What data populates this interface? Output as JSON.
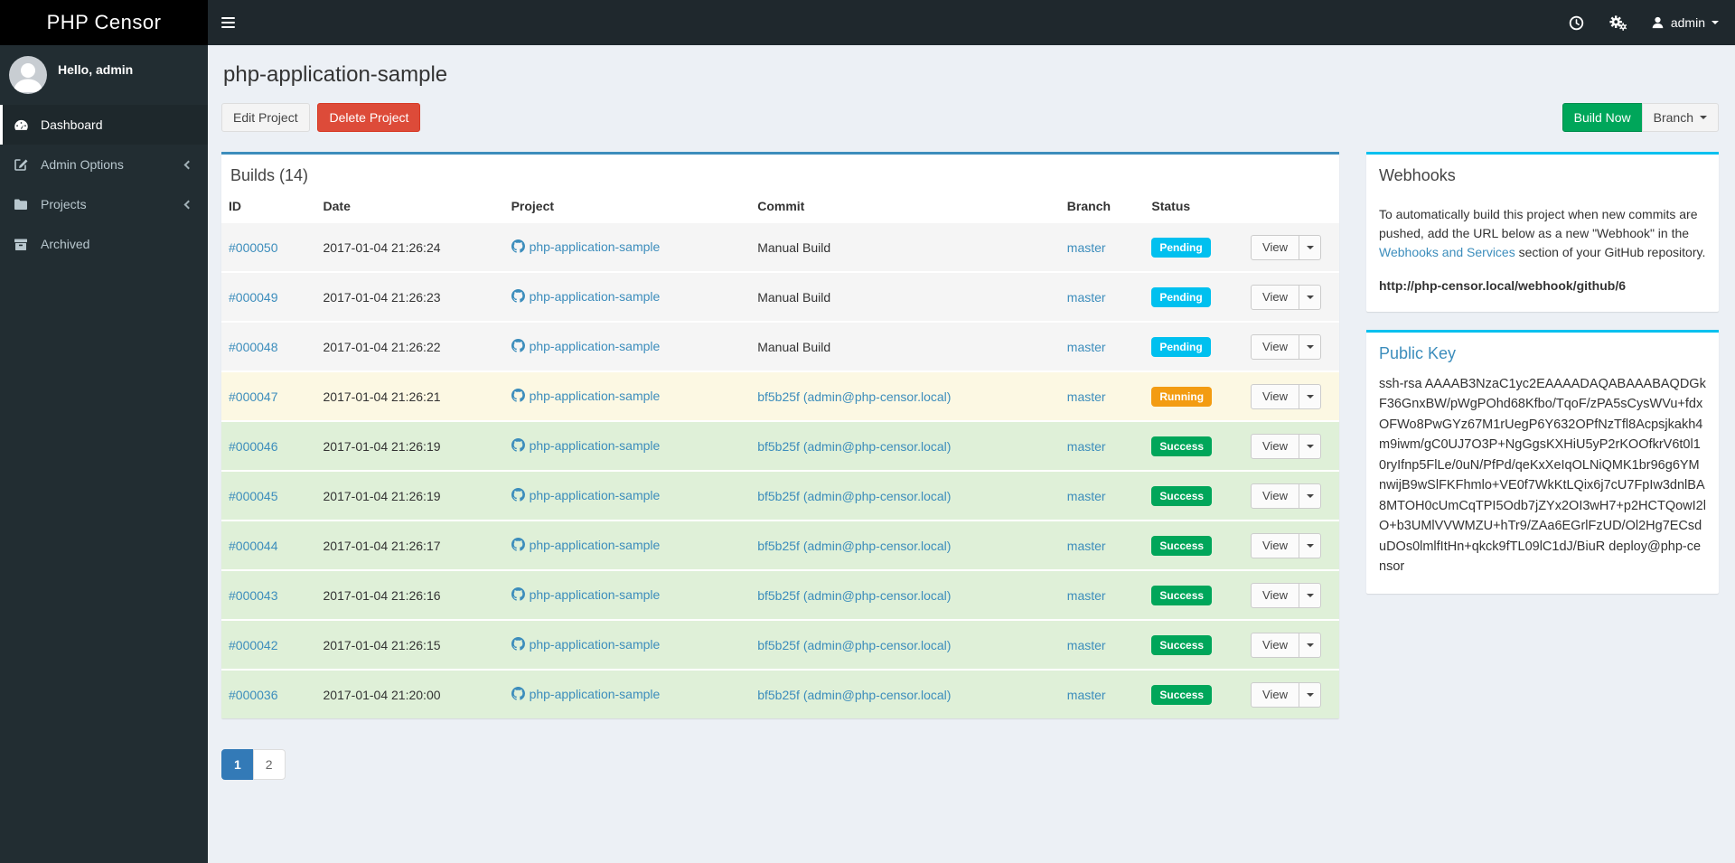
{
  "navbar": {
    "brand": "PHP Censor",
    "user": "admin"
  },
  "sidebar": {
    "greeting": "Hello, admin",
    "items": [
      {
        "label": "Dashboard",
        "icon": "tachometer-icon",
        "active": true,
        "chevron": false
      },
      {
        "label": "Admin Options",
        "icon": "edit-icon",
        "active": false,
        "chevron": true
      },
      {
        "label": "Projects",
        "icon": "folder-icon",
        "active": false,
        "chevron": true
      },
      {
        "label": "Archived",
        "icon": "archive-icon",
        "active": false,
        "chevron": false
      }
    ]
  },
  "page": {
    "title": "php-application-sample",
    "edit_button": "Edit Project",
    "delete_button": "Delete Project",
    "build_now_button": "Build Now",
    "branch_button": "Branch"
  },
  "builds": {
    "panel_title": "Builds (14)",
    "columns": [
      "ID",
      "Date",
      "Project",
      "Commit",
      "Branch",
      "Status"
    ],
    "view_label": "View",
    "rows": [
      {
        "id": "#000050",
        "date": "2017-01-04 21:26:24",
        "project": "php-application-sample",
        "commit": "Manual Build",
        "commit_is_link": false,
        "branch": "master",
        "status": "Pending"
      },
      {
        "id": "#000049",
        "date": "2017-01-04 21:26:23",
        "project": "php-application-sample",
        "commit": "Manual Build",
        "commit_is_link": false,
        "branch": "master",
        "status": "Pending"
      },
      {
        "id": "#000048",
        "date": "2017-01-04 21:26:22",
        "project": "php-application-sample",
        "commit": "Manual Build",
        "commit_is_link": false,
        "branch": "master",
        "status": "Pending"
      },
      {
        "id": "#000047",
        "date": "2017-01-04 21:26:21",
        "project": "php-application-sample",
        "commit": "bf5b25f (admin@php-censor.local)",
        "commit_is_link": true,
        "branch": "master",
        "status": "Running"
      },
      {
        "id": "#000046",
        "date": "2017-01-04 21:26:19",
        "project": "php-application-sample",
        "commit": "bf5b25f (admin@php-censor.local)",
        "commit_is_link": true,
        "branch": "master",
        "status": "Success"
      },
      {
        "id": "#000045",
        "date": "2017-01-04 21:26:19",
        "project": "php-application-sample",
        "commit": "bf5b25f (admin@php-censor.local)",
        "commit_is_link": true,
        "branch": "master",
        "status": "Success"
      },
      {
        "id": "#000044",
        "date": "2017-01-04 21:26:17",
        "project": "php-application-sample",
        "commit": "bf5b25f (admin@php-censor.local)",
        "commit_is_link": true,
        "branch": "master",
        "status": "Success"
      },
      {
        "id": "#000043",
        "date": "2017-01-04 21:26:16",
        "project": "php-application-sample",
        "commit": "bf5b25f (admin@php-censor.local)",
        "commit_is_link": true,
        "branch": "master",
        "status": "Success"
      },
      {
        "id": "#000042",
        "date": "2017-01-04 21:26:15",
        "project": "php-application-sample",
        "commit": "bf5b25f (admin@php-censor.local)",
        "commit_is_link": true,
        "branch": "master",
        "status": "Success"
      },
      {
        "id": "#000036",
        "date": "2017-01-04 21:20:00",
        "project": "php-application-sample",
        "commit": "bf5b25f (admin@php-censor.local)",
        "commit_is_link": true,
        "branch": "master",
        "status": "Success"
      }
    ],
    "pagination": {
      "pages": [
        "1",
        "2"
      ],
      "active": "1"
    }
  },
  "webhooks": {
    "title": "Webhooks",
    "text_before": "To automatically build this project when new commits are pushed, add the URL below as a new \"Webhook\" in the ",
    "link_text": "Webhooks and Services",
    "text_after": " section of your GitHub repository.",
    "url": "http://php-censor.local/webhook/github/6"
  },
  "public_key": {
    "title": "Public Key",
    "key": "ssh-rsa AAAAB3NzaC1yc2EAAAADAQABAAABAQDGkF36GnxBW/pWgPOhd68Kfbo/TqoF/zPA5sCysWVu+fdxOFWo8PwGYz67M1rUegP6Y632OPfNzTfl8Acpsjkakh4m9iwm/gC0UJ7O3P+NgGgsKXHiU5yP2rKOOfkrV6t0l10ryIfnp5FlLe/0uN/PfPd/qeKxXeIqOLNiQMK1br96g6YMnwijB9wSlFKFhmlo+VE0f7WkKtLQix6j7cU7FpIw3dnlBA8MTOH0cUmCqTPI5Odb7jZYx2OI3wH7+p2HCTQowI2lO+b3UMlVVWMZU+hTr9/ZAa6EGrlFzUD/Ol2Hg7ECsduDOs0lmlfItHn+qkck9fTL09lC1dJ/BiuR deploy@php-censor"
  },
  "colors": {
    "primary": "#3c8dbc",
    "info": "#00c0ef",
    "warning": "#f39c12",
    "success": "#00a65a",
    "danger": "#dd4b39",
    "sidebar_bg": "#222d32",
    "navbar_bg": "#1f282d",
    "content_bg": "#ecf0f5"
  }
}
